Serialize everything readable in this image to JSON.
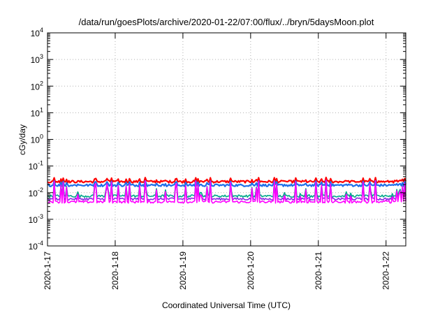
{
  "chart_data": {
    "type": "line",
    "title": "/data/run/goesPlots/archive/2020-01-22/07:00/flux/../bryn/5daysMoon.plot",
    "xlabel": "Coordinated Universal Time (UTC)",
    "ylabel": "cGy/day",
    "yscale": "log",
    "ylim": [
      0.0001,
      10000
    ],
    "y_ticks": [
      {
        "base": "10",
        "exp": "-4"
      },
      {
        "base": "10",
        "exp": "-3"
      },
      {
        "base": "10",
        "exp": "-2"
      },
      {
        "base": "10",
        "exp": "-1"
      },
      {
        "base": "10",
        "exp": "0"
      },
      {
        "base": "10",
        "exp": "1"
      },
      {
        "base": "10",
        "exp": "2"
      },
      {
        "base": "10",
        "exp": "3"
      },
      {
        "base": "10",
        "exp": "4"
      }
    ],
    "xlim": [
      "2020-01-17",
      "2020-01-22 07:00"
    ],
    "x_ticks": [
      "2020-1-17",
      "2020-1-18",
      "2020-1-19",
      "2020-1-20",
      "2020-1-21",
      "2020-1-22"
    ],
    "grid": true,
    "series": [
      {
        "color": "#ff0000",
        "baseline": 0.026,
        "spike": 0.045
      },
      {
        "color": "#1e6fe8",
        "baseline": 0.019,
        "spike": 0.035
      },
      {
        "color": "#00a88a",
        "baseline": 0.0075,
        "spike": 0.028
      },
      {
        "color": "#8a2be2",
        "baseline": 0.0058,
        "spike": 0.024
      },
      {
        "color": "#ff00ff",
        "baseline": 0.0045,
        "spike": 0.03
      }
    ]
  },
  "colors": {
    "axis": "#000000",
    "grid": "#b0b0b0"
  }
}
